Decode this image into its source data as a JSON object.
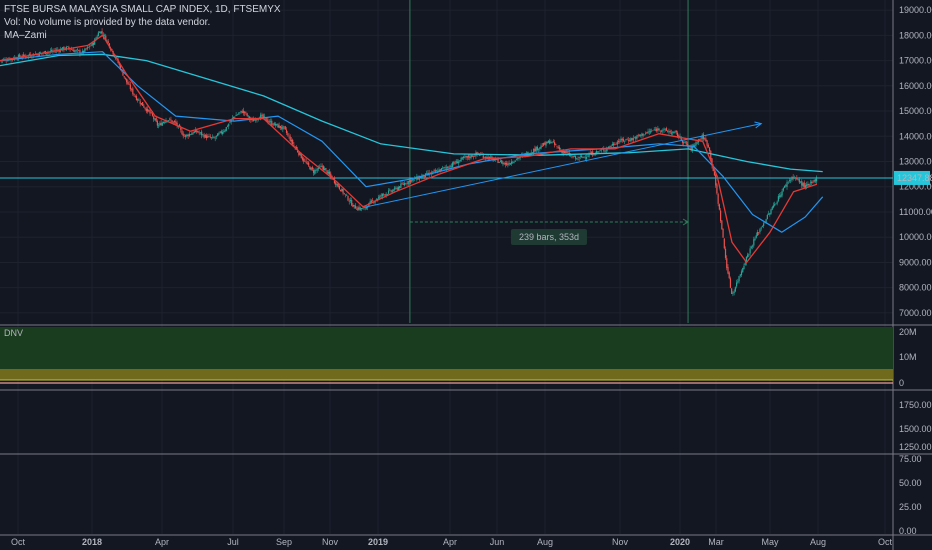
{
  "header": {
    "title": "FTSE BURSA MALAYSIA SMALL CAP INDEX, 1D, FTSEMYX",
    "volume_note": "Vol: No volume is provided by the data vendor.",
    "indicator": "MA–Zami"
  },
  "price_label": "12347.88",
  "measure_label": "239 bars, 353d",
  "pane2_label": "DNV",
  "colors": {
    "background": "#131722",
    "candle_up": "#26a69a",
    "candle_down": "#ef5350",
    "ma_fast": "#fdd835",
    "ma_red": "#e53935",
    "ma_blue": "#2196f3",
    "ma_teal": "#26c6da",
    "trend": "#2196f3",
    "dnv_fill": "#1b3d1f"
  },
  "chart_data": [
    {
      "type": "candlestick",
      "x_ticks": [
        "Oct",
        "2018",
        "Apr",
        "Jul",
        "Sep",
        "Nov",
        "2019",
        "Apr",
        "Jun",
        "Aug",
        "Nov",
        "2020",
        "Mar",
        "May",
        "Aug",
        "Oct"
      ],
      "y_ticks": [
        "19000.00",
        "18000.00",
        "17000.00",
        "16000.00",
        "15000.00",
        "14000.00",
        "13000.00",
        "12000.00",
        "11000.00",
        "10000.00",
        "9000.00",
        "8000.00",
        "7000.00"
      ],
      "ylim": [
        6600,
        19400
      ],
      "xlim": [
        2017.75,
        2020.8
      ],
      "close_path": [
        [
          2017.75,
          17000
        ],
        [
          2017.84,
          17200
        ],
        [
          2017.92,
          17350
        ],
        [
          2017.98,
          17500
        ],
        [
          2018.03,
          17300
        ],
        [
          2018.07,
          17700
        ],
        [
          2018.09,
          18200
        ],
        [
          2018.11,
          17900
        ],
        [
          2018.15,
          17000
        ],
        [
          2018.18,
          16200
        ],
        [
          2018.21,
          15600
        ],
        [
          2018.24,
          15200
        ],
        [
          2018.27,
          14800
        ],
        [
          2018.29,
          14400
        ],
        [
          2018.32,
          14700
        ],
        [
          2018.35,
          14500
        ],
        [
          2018.38,
          14000
        ],
        [
          2018.42,
          14200
        ],
        [
          2018.45,
          14000
        ],
        [
          2018.48,
          13900
        ],
        [
          2018.52,
          14300
        ],
        [
          2018.55,
          14800
        ],
        [
          2018.58,
          15000
        ],
        [
          2018.61,
          14600
        ],
        [
          2018.64,
          14800
        ],
        [
          2018.68,
          14500
        ],
        [
          2018.72,
          14300
        ],
        [
          2018.75,
          13700
        ],
        [
          2018.79,
          13000
        ],
        [
          2018.82,
          12600
        ],
        [
          2018.85,
          12800
        ],
        [
          2018.88,
          12400
        ],
        [
          2018.92,
          11800
        ],
        [
          2018.96,
          11200
        ],
        [
          2018.99,
          11100
        ],
        [
          2019.02,
          11400
        ],
        [
          2019.06,
          11700
        ],
        [
          2019.1,
          11900
        ],
        [
          2019.14,
          12200
        ],
        [
          2019.19,
          12400
        ],
        [
          2019.24,
          12600
        ],
        [
          2019.28,
          12800
        ],
        [
          2019.33,
          13100
        ],
        [
          2019.38,
          13300
        ],
        [
          2019.43,
          13100
        ],
        [
          2019.48,
          12900
        ],
        [
          2019.53,
          13200
        ],
        [
          2019.58,
          13500
        ],
        [
          2019.63,
          13800
        ],
        [
          2019.67,
          13400
        ],
        [
          2019.72,
          13100
        ],
        [
          2019.77,
          13300
        ],
        [
          2019.82,
          13500
        ],
        [
          2019.86,
          13800
        ],
        [
          2019.91,
          13900
        ],
        [
          2019.95,
          14100
        ],
        [
          2020.0,
          14300
        ],
        [
          2020.03,
          14200
        ],
        [
          2020.06,
          14100
        ],
        [
          2020.09,
          13700
        ],
        [
          2020.11,
          13500
        ],
        [
          2020.13,
          13800
        ],
        [
          2020.15,
          14000
        ],
        [
          2020.17,
          13600
        ],
        [
          2020.19,
          12400
        ],
        [
          2020.21,
          10800
        ],
        [
          2020.23,
          9000
        ],
        [
          2020.25,
          7700
        ],
        [
          2020.27,
          8300
        ],
        [
          2020.3,
          9200
        ],
        [
          2020.33,
          10000
        ],
        [
          2020.36,
          10600
        ],
        [
          2020.39,
          11200
        ],
        [
          2020.42,
          11800
        ],
        [
          2020.44,
          12200
        ],
        [
          2020.46,
          12400
        ],
        [
          2020.48,
          12200
        ],
        [
          2020.5,
          12000
        ],
        [
          2020.52,
          12100
        ],
        [
          2020.54,
          12347.88
        ]
      ],
      "moving_averages": {
        "teal_long": [
          [
            2017.75,
            16800
          ],
          [
            2017.95,
            17200
          ],
          [
            2018.1,
            17250
          ],
          [
            2018.25,
            17000
          ],
          [
            2018.45,
            16300
          ],
          [
            2018.65,
            15600
          ],
          [
            2018.85,
            14600
          ],
          [
            2019.05,
            13700
          ],
          [
            2019.3,
            13300
          ],
          [
            2019.6,
            13250
          ],
          [
            2019.9,
            13350
          ],
          [
            2020.1,
            13500
          ],
          [
            2020.3,
            13000
          ],
          [
            2020.45,
            12700
          ],
          [
            2020.56,
            12600
          ]
        ],
        "blue_mid": [
          [
            2017.75,
            17000
          ],
          [
            2017.95,
            17250
          ],
          [
            2018.1,
            17350
          ],
          [
            2018.22,
            16000
          ],
          [
            2018.35,
            14800
          ],
          [
            2018.55,
            14600
          ],
          [
            2018.7,
            14800
          ],
          [
            2018.85,
            13800
          ],
          [
            2019.0,
            12000
          ],
          [
            2019.15,
            12300
          ],
          [
            2019.35,
            12900
          ],
          [
            2019.55,
            13300
          ],
          [
            2019.8,
            13500
          ],
          [
            2020.0,
            13700
          ],
          [
            2020.12,
            13600
          ],
          [
            2020.22,
            12400
          ],
          [
            2020.32,
            10900
          ],
          [
            2020.42,
            10200
          ],
          [
            2020.5,
            10800
          ],
          [
            2020.56,
            11600
          ]
        ],
        "red_short": [
          [
            2017.75,
            17000
          ],
          [
            2017.9,
            17300
          ],
          [
            2018.05,
            17600
          ],
          [
            2018.1,
            18000
          ],
          [
            2018.18,
            16500
          ],
          [
            2018.28,
            14800
          ],
          [
            2018.4,
            14200
          ],
          [
            2018.55,
            14700
          ],
          [
            2018.65,
            14700
          ],
          [
            2018.78,
            13300
          ],
          [
            2018.9,
            12200
          ],
          [
            2018.99,
            11200
          ],
          [
            2019.1,
            11800
          ],
          [
            2019.25,
            12500
          ],
          [
            2019.4,
            13100
          ],
          [
            2019.55,
            13200
          ],
          [
            2019.7,
            13500
          ],
          [
            2019.85,
            13500
          ],
          [
            2020.0,
            14100
          ],
          [
            2020.1,
            13900
          ],
          [
            2020.15,
            13800
          ],
          [
            2020.2,
            12400
          ],
          [
            2020.25,
            9800
          ],
          [
            2020.3,
            9000
          ],
          [
            2020.38,
            10200
          ],
          [
            2020.46,
            11800
          ],
          [
            2020.54,
            12100
          ]
        ]
      },
      "trendlines": [
        [
          [
            2019.0,
            11200
          ],
          [
            2020.35,
            14500
          ]
        ]
      ],
      "horizontal_line": 12347.88,
      "vertical_markers": [
        2019.15,
        2020.1
      ]
    },
    {
      "type": "area",
      "name": "DNV",
      "y_ticks": [
        "20M",
        "10M",
        "0"
      ]
    },
    {
      "type": "line",
      "y_ticks": [
        "1750.00",
        "1500.00",
        "1250.00"
      ]
    },
    {
      "type": "line",
      "y_ticks": [
        "75.00",
        "50.00",
        "25.00",
        "0.00"
      ]
    }
  ]
}
